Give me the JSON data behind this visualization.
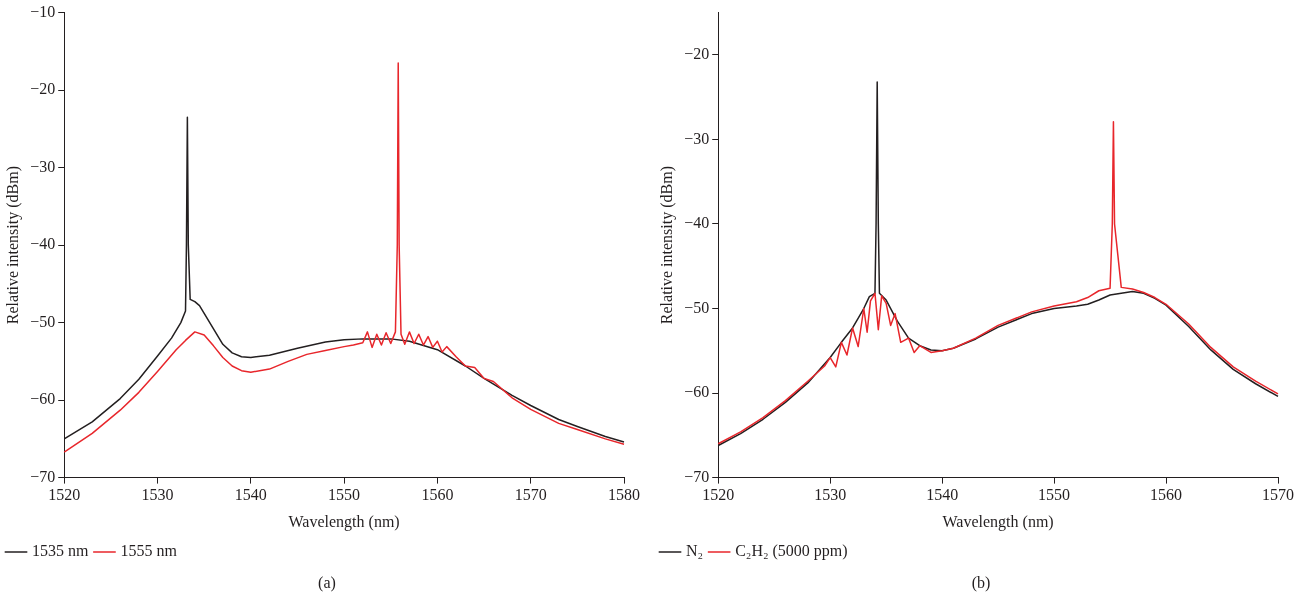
{
  "chart_data": [
    {
      "type": "line",
      "xlabel": "Wavelength (nm)",
      "ylabel": "Relative intensity (dBm)",
      "xlim": [
        1520,
        1580
      ],
      "ylim": [
        -70,
        -10
      ],
      "xticks": [
        1520,
        1530,
        1540,
        1550,
        1560,
        1570,
        1580
      ],
      "yticks": [
        -70,
        -60,
        -50,
        -40,
        -30,
        -20,
        -10
      ],
      "legend": "bottom left",
      "marker": "none",
      "line_style": "solid",
      "annotations": [
        "(a)"
      ],
      "series": [
        {
          "name": "1535 nm",
          "color": "#231f20",
          "x": [
            1520,
            1523,
            1526,
            1528,
            1530,
            1531.5,
            1532.5,
            1533,
            1533.1,
            1533.2,
            1533.3,
            1533.5,
            1534,
            1534.5,
            1535,
            1536,
            1537,
            1538,
            1539,
            1540,
            1542,
            1545,
            1548,
            1550,
            1552,
            1555,
            1557,
            1560,
            1563,
            1565,
            1568,
            1570,
            1573,
            1575,
            1578,
            1580
          ],
          "values": [
            -65,
            -62.8,
            -59.8,
            -57.3,
            -54.3,
            -52,
            -50,
            -48.5,
            -40,
            -23.5,
            -40,
            -47,
            -47.3,
            -47.8,
            -48.8,
            -50.8,
            -52.8,
            -53.9,
            -54.4,
            -54.5,
            -54.2,
            -53.3,
            -52.5,
            -52.2,
            -52.1,
            -52.1,
            -52.4,
            -53.5,
            -55.6,
            -57.2,
            -59.4,
            -60.7,
            -62.5,
            -63.4,
            -64.7,
            -65.4
          ]
        },
        {
          "name": "1555 nm",
          "color": "#e8262b",
          "x": [
            1520,
            1523,
            1526,
            1528,
            1530,
            1532,
            1533,
            1534,
            1535,
            1536,
            1537,
            1538,
            1539,
            1540,
            1542,
            1544,
            1546,
            1548,
            1550,
            1551,
            1552,
            1552.5,
            1553,
            1553.5,
            1554,
            1554.5,
            1555,
            1555.5,
            1555.7,
            1555.8,
            1555.9,
            1556.1,
            1556.5,
            1557,
            1557.5,
            1558,
            1558.5,
            1559,
            1559.5,
            1560,
            1560.5,
            1561,
            1562,
            1563,
            1564,
            1565,
            1566,
            1568,
            1570,
            1573,
            1575,
            1578,
            1580
          ],
          "values": [
            -66.7,
            -64.3,
            -61.3,
            -59,
            -56.3,
            -53.5,
            -52.3,
            -51.2,
            -51.6,
            -53,
            -54.5,
            -55.6,
            -56.2,
            -56.4,
            -56,
            -55,
            -54.1,
            -53.6,
            -53.1,
            -52.9,
            -52.6,
            -51.2,
            -53.2,
            -51.5,
            -52.9,
            -51.3,
            -52.7,
            -51.2,
            -40,
            -16.5,
            -40,
            -51.5,
            -52.8,
            -51.2,
            -52.7,
            -51.5,
            -52.9,
            -51.8,
            -53.2,
            -52.4,
            -53.8,
            -53.1,
            -54.4,
            -55.6,
            -55.8,
            -57.2,
            -57.6,
            -59.7,
            -61.2,
            -63,
            -63.8,
            -65,
            -65.7
          ]
        }
      ]
    },
    {
      "type": "line",
      "xlabel": "Wavelength (nm)",
      "ylabel": "Relative intensity (dBm)",
      "xlim": [
        1520,
        1570
      ],
      "ylim": [
        -70,
        -15
      ],
      "xticks": [
        1520,
        1530,
        1540,
        1550,
        1560,
        1570
      ],
      "yticks": [
        -70,
        -60,
        -50,
        -40,
        -30,
        -20
      ],
      "legend": "bottom left",
      "marker": "none",
      "line_style": "solid",
      "annotations": [
        "(b)"
      ],
      "series": [
        {
          "name": "N₂",
          "color": "#231f20",
          "x": [
            1520,
            1522,
            1524,
            1526,
            1528,
            1530,
            1531,
            1532,
            1533,
            1533.5,
            1534,
            1534.1,
            1534.2,
            1534.3,
            1534.4,
            1535,
            1536,
            1537,
            1538,
            1539,
            1540,
            1541,
            1543,
            1545,
            1548,
            1550,
            1552,
            1553,
            1554,
            1555,
            1556,
            1557,
            1558,
            1559,
            1560,
            1562,
            1564,
            1566,
            1568,
            1570
          ],
          "values": [
            -66.2,
            -64.8,
            -63.1,
            -61.1,
            -58.8,
            -55.8,
            -54,
            -52.3,
            -50,
            -48.6,
            -48.2,
            -40,
            -23.2,
            -40,
            -48.2,
            -49,
            -51.5,
            -53.5,
            -54.4,
            -54.9,
            -55,
            -54.7,
            -53.6,
            -52.2,
            -50.6,
            -50,
            -49.7,
            -49.5,
            -49,
            -48.4,
            -48.2,
            -48,
            -48.2,
            -48.8,
            -49.6,
            -52.1,
            -54.9,
            -57.2,
            -58.9,
            -60.4
          ]
        },
        {
          "name": "C₂H₂ (5000 ppm)",
          "color": "#e8262b",
          "x": [
            1520,
            1522,
            1524,
            1526,
            1528,
            1529.5,
            1530,
            1530.5,
            1531,
            1531.5,
            1532,
            1532.5,
            1533,
            1533.3,
            1533.6,
            1534,
            1534.3,
            1534.6,
            1535,
            1535.4,
            1535.8,
            1536.3,
            1537,
            1537.5,
            1538,
            1539,
            1540,
            1541,
            1543,
            1545,
            1548,
            1550,
            1552,
            1553,
            1554,
            1555,
            1555.2,
            1555.3,
            1555.4,
            1556,
            1557,
            1558,
            1559,
            1560,
            1562,
            1564,
            1566,
            1568,
            1570
          ],
          "values": [
            -66,
            -64.6,
            -62.9,
            -60.9,
            -58.6,
            -56.8,
            -55.8,
            -56.9,
            -54,
            -55.5,
            -52.3,
            -54.5,
            -50,
            -52.8,
            -49.1,
            -48.2,
            -52.5,
            -48.5,
            -49.4,
            -52,
            -50.6,
            -54,
            -53.5,
            -55.2,
            -54.4,
            -55.2,
            -55,
            -54.7,
            -53.5,
            -52,
            -50.4,
            -49.7,
            -49.2,
            -48.7,
            -47.9,
            -47.6,
            -40,
            -27.9,
            -40,
            -47.5,
            -47.7,
            -48.1,
            -48.7,
            -49.5,
            -51.8,
            -54.6,
            -56.9,
            -58.6,
            -60.1
          ]
        }
      ]
    }
  ]
}
